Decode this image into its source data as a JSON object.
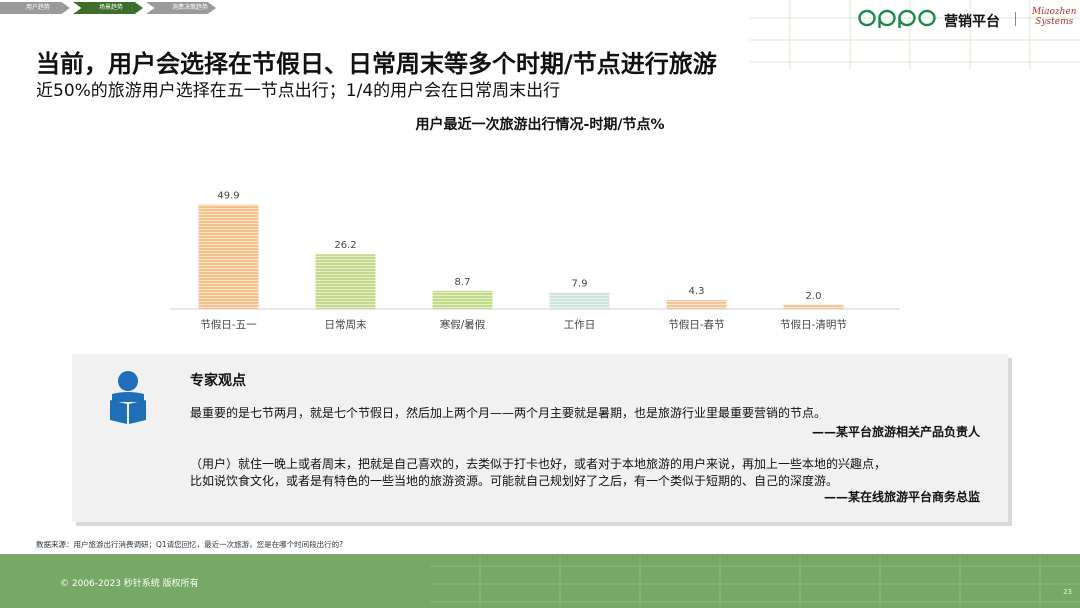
{
  "breadcrumb": [
    "用户趋势",
    "场景趋势",
    "消费决策趋势"
  ],
  "breadcrumb_active": 1,
  "logo": {
    "text": "oppo",
    "platform": "营销平台",
    "partner": [
      "Miaozhen",
      "Systems"
    ]
  },
  "title": "当前，用户会选择在节假日、日常周末等多个时期/节点进行旅游",
  "subtitle": "近50%的旅游用户选择在五一节点出行；1/4的用户会在日常周末出行",
  "chart_data": {
    "type": "bar",
    "title": "用户最近一次旅游出行情况-时期/节点%",
    "categories": [
      "节假日-五一",
      "日常周末",
      "寒假/暑假",
      "工作日",
      "节假日-春节",
      "节假日-清明节"
    ],
    "values": [
      49.9,
      26.2,
      8.7,
      7.9,
      4.3,
      2.0
    ],
    "colors": [
      "#f4c28a",
      "#c6d98a",
      "#c2dc8a",
      "#cfe4dc",
      "#f3c59a",
      "#f3c59a"
    ],
    "ylim": [
      0,
      55
    ],
    "grid": false,
    "legend": "none"
  },
  "expert": {
    "heading": "专家观点",
    "quote1": "最重要的是七节两月，就是七个节假日，然后加上两个月——两个月主要就是暑期，也是旅游行业里最重要营销的节点。",
    "source1": "——某平台旅游相关产品负责人",
    "quote2_line1": "（用户）就住一晚上或者周末，把就是自己喜欢的，去类似于打卡也好，或者对于本地旅游的用户来说，再加上一些本地的兴趣点，",
    "quote2_line2": "比如说饮食文化，或者是有特色的一些当地的旅游资源。可能就自己规划好了之后，有一个类似于短期的、自己的深度游。",
    "source2": "——某在线旅游平台商务总监"
  },
  "data_source": "数据来源：用户旅游出行消费调研；Q1请您回忆，最近一次旅游，您是在哪个时间段出行的?",
  "copyright": "© 2006-2023 秒针系统 版权所有",
  "page_number": "23"
}
